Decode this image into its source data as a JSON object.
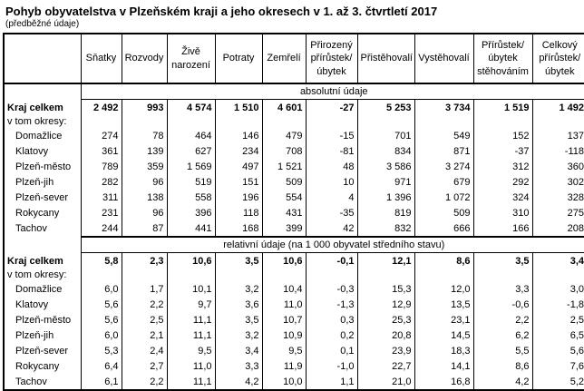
{
  "title": "Pohyb obyvatelstva v Plzeňském kraji a jeho okresech v 1. až 3. čtvrtletí 2017",
  "subtitle": "(předběžné údaje)",
  "table": {
    "columns": [
      "Sňatky",
      "Rozvody",
      "Živě narození",
      "Potraty",
      "Zemřelí",
      "Přirozený přírůstek/ úbytek",
      "Přistěhovalí",
      "Vystěhovalí",
      "Přírůstek/ úbytek stěhováním",
      "Celkový přírůstek/ úbytek"
    ],
    "sections": [
      {
        "header": "absolutní údaje",
        "total_row": {
          "label": "Kraj celkem",
          "values": [
            "2 492",
            "993",
            "4 574",
            "1 510",
            "4 601",
            "-27",
            "5 253",
            "3 734",
            "1 519",
            "1 492"
          ]
        },
        "group_label": "v tom okresy:",
        "rows": [
          {
            "label": "Domažlice",
            "values": [
              "274",
              "78",
              "464",
              "146",
              "479",
              "-15",
              "701",
              "549",
              "152",
              "137"
            ]
          },
          {
            "label": "Klatovy",
            "values": [
              "361",
              "139",
              "627",
              "234",
              "708",
              "-81",
              "834",
              "871",
              "-37",
              "-118"
            ]
          },
          {
            "label": "Plzeň-město",
            "values": [
              "789",
              "359",
              "1 569",
              "497",
              "1 521",
              "48",
              "3 586",
              "3 274",
              "312",
              "360"
            ]
          },
          {
            "label": "Plzeň-jih",
            "values": [
              "282",
              "96",
              "519",
              "151",
              "509",
              "10",
              "971",
              "679",
              "292",
              "302"
            ]
          },
          {
            "label": "Plzeň-sever",
            "values": [
              "311",
              "138",
              "558",
              "196",
              "554",
              "4",
              "1 396",
              "1 072",
              "324",
              "328"
            ]
          },
          {
            "label": "Rokycany",
            "values": [
              "231",
              "96",
              "396",
              "118",
              "431",
              "-35",
              "819",
              "509",
              "310",
              "275"
            ]
          },
          {
            "label": "Tachov",
            "values": [
              "244",
              "87",
              "441",
              "168",
              "399",
              "42",
              "832",
              "666",
              "166",
              "208"
            ]
          }
        ]
      },
      {
        "header": "relativní údaje (na 1 000 obyvatel středního stavu)",
        "total_row": {
          "label": "Kraj celkem",
          "values": [
            "5,8",
            "2,3",
            "10,6",
            "3,5",
            "10,6",
            "-0,1",
            "12,1",
            "8,6",
            "3,5",
            "3,4"
          ]
        },
        "group_label": "v tom okresy:",
        "rows": [
          {
            "label": "Domažlice",
            "values": [
              "6,0",
              "1,7",
              "10,1",
              "3,2",
              "10,4",
              "-0,3",
              "15,3",
              "12,0",
              "3,3",
              "3,0"
            ]
          },
          {
            "label": "Klatovy",
            "values": [
              "5,6",
              "2,2",
              "9,7",
              "3,6",
              "11,0",
              "-1,3",
              "12,9",
              "13,5",
              "-0,6",
              "-1,8"
            ]
          },
          {
            "label": "Plzeň-město",
            "values": [
              "5,6",
              "2,5",
              "11,1",
              "3,5",
              "10,7",
              "0,3",
              "25,3",
              "23,1",
              "2,2",
              "2,5"
            ]
          },
          {
            "label": "Plzeň-jih",
            "values": [
              "6,0",
              "2,1",
              "11,1",
              "3,2",
              "10,9",
              "0,2",
              "20,8",
              "14,5",
              "6,2",
              "6,5"
            ]
          },
          {
            "label": "Plzeň-sever",
            "values": [
              "5,3",
              "2,4",
              "9,5",
              "3,4",
              "9,5",
              "0,1",
              "23,9",
              "18,3",
              "5,5",
              "5,6"
            ]
          },
          {
            "label": "Rokycany",
            "values": [
              "6,4",
              "2,7",
              "11,0",
              "3,3",
              "11,9",
              "-1,0",
              "22,7",
              "14,1",
              "8,6",
              "7,6"
            ]
          },
          {
            "label": "Tachov",
            "values": [
              "6,1",
              "2,2",
              "11,1",
              "4,2",
              "10,0",
              "1,1",
              "21,0",
              "16,8",
              "4,2",
              "5,2"
            ]
          }
        ]
      }
    ]
  }
}
